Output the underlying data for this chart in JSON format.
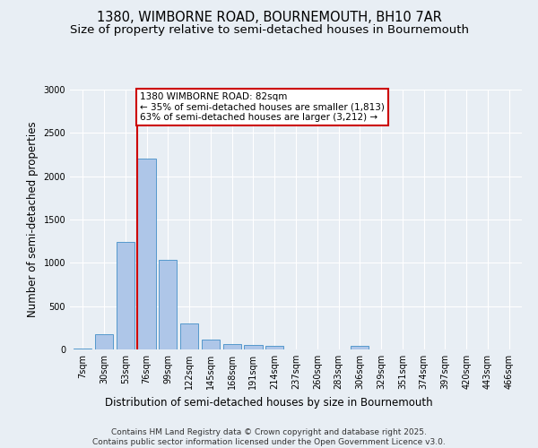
{
  "title_line1": "1380, WIMBORNE ROAD, BOURNEMOUTH, BH10 7AR",
  "title_line2": "Size of property relative to semi-detached houses in Bournemouth",
  "xlabel": "Distribution of semi-detached houses by size in Bournemouth",
  "ylabel": "Number of semi-detached properties",
  "footnote": "Contains HM Land Registry data © Crown copyright and database right 2025.\nContains public sector information licensed under the Open Government Licence v3.0.",
  "bar_labels": [
    "7sqm",
    "30sqm",
    "53sqm",
    "76sqm",
    "99sqm",
    "122sqm",
    "145sqm",
    "168sqm",
    "191sqm",
    "214sqm",
    "237sqm",
    "260sqm",
    "283sqm",
    "306sqm",
    "329sqm",
    "351sqm",
    "374sqm",
    "397sqm",
    "420sqm",
    "443sqm",
    "466sqm"
  ],
  "bar_values": [
    15,
    175,
    1240,
    2200,
    1030,
    300,
    110,
    60,
    55,
    40,
    5,
    0,
    0,
    40,
    0,
    0,
    0,
    0,
    0,
    0,
    0
  ],
  "bar_color": "#aec6e8",
  "bar_edgecolor": "#5599cc",
  "ylim": [
    0,
    3000
  ],
  "yticks": [
    0,
    500,
    1000,
    1500,
    2000,
    2500,
    3000
  ],
  "property_bin_index": 3,
  "annotation_text": "1380 WIMBORNE ROAD: 82sqm\n← 35% of semi-detached houses are smaller (1,813)\n63% of semi-detached houses are larger (3,212) →",
  "annotation_box_color": "#ffffff",
  "annotation_box_edgecolor": "#cc0000",
  "vline_color": "#cc0000",
  "background_color": "#e8eef4",
  "grid_color": "#ffffff",
  "title_fontsize": 10.5,
  "subtitle_fontsize": 9.5,
  "tick_fontsize": 7,
  "ylabel_fontsize": 8.5,
  "xlabel_fontsize": 8.5,
  "annotation_fontsize": 7.5,
  "footnote_fontsize": 6.5
}
